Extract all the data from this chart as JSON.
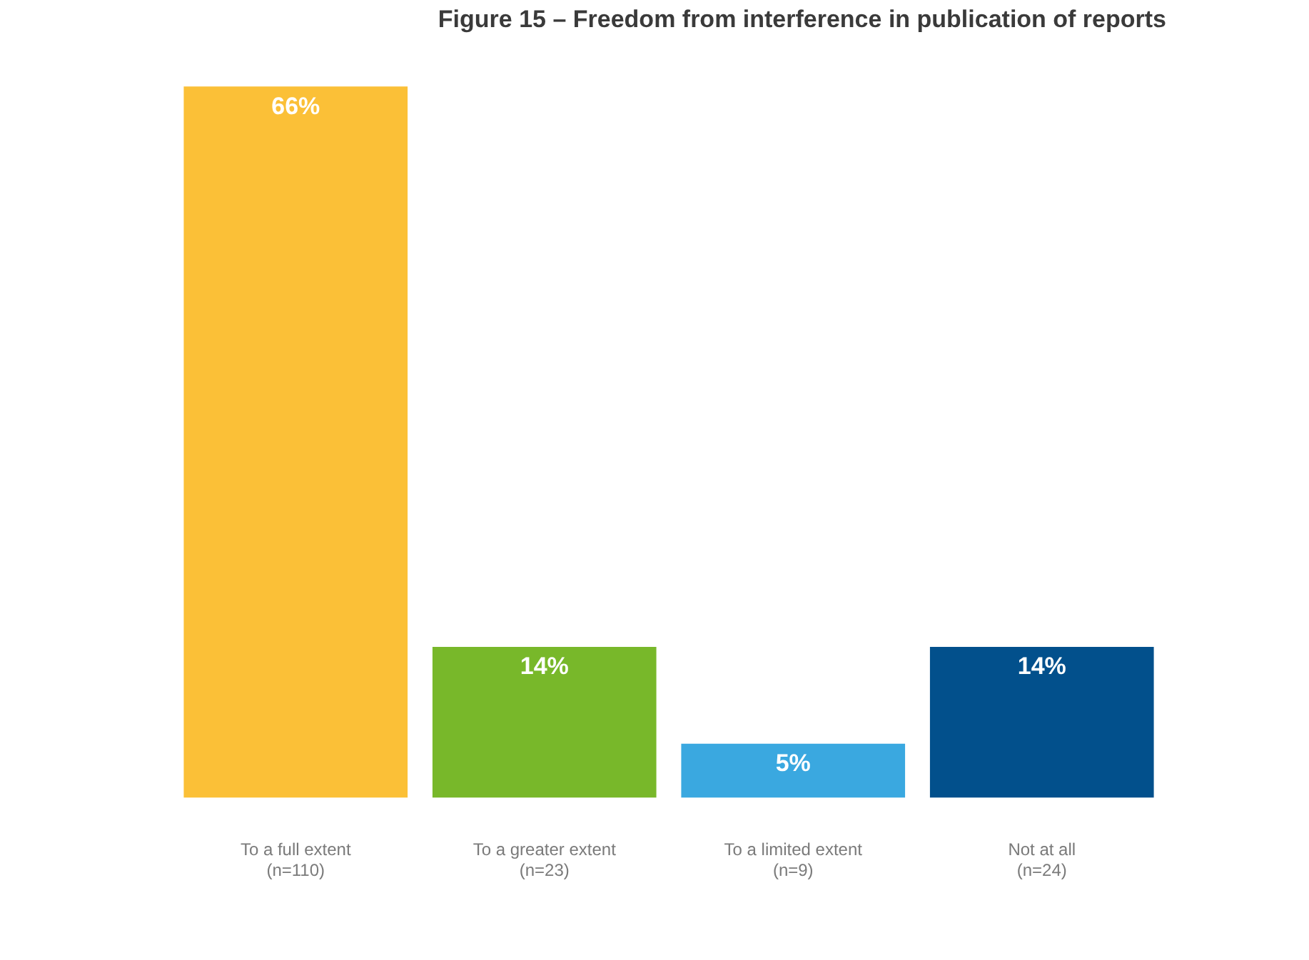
{
  "chart_data": {
    "type": "bar",
    "title": "Figure 15 – Freedom from interference in publication of reports",
    "categories": [
      "To a full extent\n(n=110)",
      "To a greater extent\n(n=23)",
      "To a limited extent\n(n=9)",
      "Not at all\n(n=24)"
    ],
    "values": [
      66,
      14,
      5,
      14
    ],
    "colors": [
      "#fbc037",
      "#78b82a",
      "#3aa8e0",
      "#02508c"
    ],
    "value_labels": [
      "66%",
      "14%",
      "5%",
      "14%"
    ],
    "grid": false,
    "legend": false,
    "tick_labels": "x"
  }
}
